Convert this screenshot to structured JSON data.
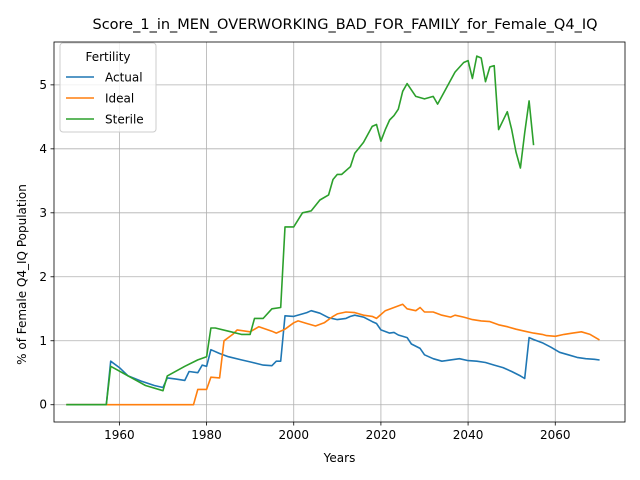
{
  "chart_data": {
    "type": "line",
    "title": "Score_1_in_MEN_OVERWORKING_BAD_FOR_FAMILY_for_Female_Q4_IQ",
    "xlabel": "Years",
    "ylabel": "% of Female Q4_IQ Population",
    "xlim": [
      1945,
      2076
    ],
    "ylim": [
      -0.27,
      5.67
    ],
    "xticks": [
      1960,
      1980,
      2000,
      2020,
      2040,
      2060
    ],
    "yticks": [
      0,
      1,
      2,
      3,
      4,
      5
    ],
    "grid": true,
    "legend": {
      "title": "Fertility",
      "placement": "top-left"
    },
    "series": [
      {
        "name": "Actual",
        "color": "#1f77b4",
        "x": [
          1948,
          1957,
          1958,
          1960,
          1962,
          1965,
          1968,
          1970,
          1971,
          1973,
          1975,
          1976,
          1978,
          1979,
          1980,
          1981,
          1983,
          1985,
          1988,
          1990,
          1993,
          1995,
          1996,
          1997,
          1998,
          2000,
          2002,
          2003,
          2004,
          2006,
          2008,
          2010,
          2012,
          2013,
          2014,
          2016,
          2018,
          2019,
          2020,
          2022,
          2023,
          2024,
          2026,
          2027,
          2029,
          2030,
          2032,
          2034,
          2035,
          2036,
          2038,
          2040,
          2042,
          2044,
          2046,
          2048,
          2050,
          2052,
          2053,
          2054,
          2055,
          2057,
          2059,
          2061,
          2063,
          2065,
          2067,
          2069,
          2070
        ],
        "values": [
          0.0,
          0.0,
          0.68,
          0.58,
          0.45,
          0.37,
          0.3,
          0.27,
          0.42,
          0.4,
          0.38,
          0.52,
          0.5,
          0.62,
          0.6,
          0.86,
          0.8,
          0.75,
          0.7,
          0.67,
          0.62,
          0.61,
          0.68,
          0.68,
          1.39,
          1.38,
          1.42,
          1.44,
          1.47,
          1.43,
          1.36,
          1.33,
          1.35,
          1.38,
          1.4,
          1.37,
          1.3,
          1.27,
          1.17,
          1.12,
          1.13,
          1.09,
          1.05,
          0.95,
          0.88,
          0.78,
          0.72,
          0.68,
          0.69,
          0.7,
          0.72,
          0.69,
          0.68,
          0.66,
          0.62,
          0.58,
          0.52,
          0.45,
          0.41,
          1.05,
          1.02,
          0.97,
          0.9,
          0.82,
          0.78,
          0.74,
          0.72,
          0.71,
          0.7
        ]
      },
      {
        "name": "Ideal",
        "color": "#ff7f0e",
        "x": [
          1948,
          1977,
          1978,
          1980,
          1981,
          1983,
          1984,
          1986,
          1987,
          1990,
          1992,
          1995,
          1996,
          1998,
          2000,
          2001,
          2003,
          2005,
          2007,
          2009,
          2010,
          2012,
          2014,
          2016,
          2018,
          2019,
          2020,
          2021,
          2023,
          2025,
          2026,
          2028,
          2029,
          2030,
          2032,
          2034,
          2036,
          2037,
          2039,
          2040,
          2041,
          2043,
          2045,
          2047,
          2049,
          2051,
          2053,
          2055,
          2057,
          2058,
          2060,
          2062,
          2064,
          2066,
          2068,
          2070
        ],
        "values": [
          0.0,
          0.0,
          0.24,
          0.24,
          0.43,
          0.42,
          1.0,
          1.1,
          1.17,
          1.14,
          1.22,
          1.15,
          1.12,
          1.18,
          1.28,
          1.31,
          1.27,
          1.23,
          1.28,
          1.38,
          1.42,
          1.45,
          1.44,
          1.4,
          1.38,
          1.35,
          1.41,
          1.47,
          1.52,
          1.57,
          1.5,
          1.47,
          1.52,
          1.45,
          1.45,
          1.4,
          1.37,
          1.4,
          1.37,
          1.35,
          1.33,
          1.31,
          1.3,
          1.25,
          1.22,
          1.18,
          1.15,
          1.12,
          1.1,
          1.08,
          1.07,
          1.1,
          1.12,
          1.14,
          1.1,
          1.02
        ]
      },
      {
        "name": "Sterile",
        "color": "#2ca02c",
        "x": [
          1948,
          1957,
          1958,
          1962,
          1966,
          1970,
          1971,
          1975,
          1978,
          1980,
          1981,
          1982,
          1985,
          1988,
          1990,
          1991,
          1993,
          1995,
          1997,
          1998,
          2000,
          2002,
          2004,
          2006,
          2008,
          2009,
          2010,
          2011,
          2013,
          2014,
          2016,
          2018,
          2019,
          2020,
          2021,
          2022,
          2023,
          2024,
          2025,
          2026,
          2028,
          2030,
          2032,
          2033,
          2035,
          2037,
          2039,
          2040,
          2041,
          2042,
          2043,
          2044,
          2045,
          2046,
          2047,
          2049,
          2050,
          2051,
          2052,
          2053,
          2054,
          2055
        ],
        "values": [
          0.0,
          0.0,
          0.6,
          0.45,
          0.3,
          0.22,
          0.45,
          0.6,
          0.7,
          0.75,
          1.2,
          1.2,
          1.15,
          1.1,
          1.1,
          1.35,
          1.35,
          1.5,
          1.52,
          2.78,
          2.78,
          3.0,
          3.03,
          3.2,
          3.28,
          3.52,
          3.6,
          3.6,
          3.72,
          3.93,
          4.1,
          4.35,
          4.38,
          4.12,
          4.3,
          4.45,
          4.52,
          4.62,
          4.9,
          5.02,
          4.82,
          4.78,
          4.82,
          4.7,
          4.95,
          5.2,
          5.35,
          5.38,
          5.1,
          5.45,
          5.42,
          5.05,
          5.28,
          5.3,
          4.3,
          4.58,
          4.3,
          3.95,
          3.7,
          4.25,
          4.75,
          4.07
        ]
      }
    ]
  }
}
